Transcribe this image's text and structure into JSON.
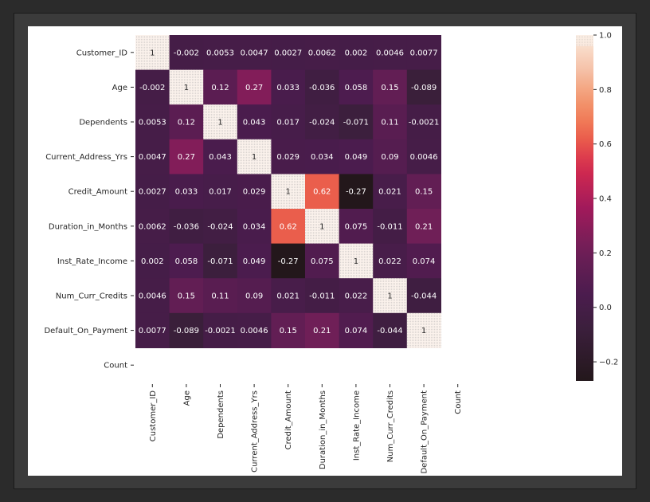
{
  "chart_data": {
    "type": "heatmap",
    "title": "",
    "row_labels": [
      "Customer_ID",
      "Age",
      "Dependents",
      "Current_Address_Yrs",
      "Credit_Amount",
      "Duration_in_Months",
      "Inst_Rate_Income",
      "Num_Curr_Credits",
      "Default_On_Payment",
      "Count"
    ],
    "col_labels": [
      "Customer_ID",
      "Age",
      "Dependents",
      "Current_Address_Yrs",
      "Credit_Amount",
      "Duration_in_Months",
      "Inst_Rate_Income",
      "Num_Curr_Credits",
      "Default_On_Payment",
      "Count"
    ],
    "values": [
      [
        1,
        -0.002,
        0.0053,
        0.0047,
        0.0027,
        0.0062,
        0.002,
        0.0046,
        0.0077,
        null
      ],
      [
        -0.002,
        1,
        0.12,
        0.27,
        0.033,
        -0.036,
        0.058,
        0.15,
        -0.089,
        null
      ],
      [
        0.0053,
        0.12,
        1,
        0.043,
        0.017,
        -0.024,
        -0.071,
        0.11,
        -0.0021,
        null
      ],
      [
        0.0047,
        0.27,
        0.043,
        1,
        0.029,
        0.034,
        0.049,
        0.09,
        0.0046,
        null
      ],
      [
        0.0027,
        0.033,
        0.017,
        0.029,
        1,
        0.62,
        -0.27,
        0.021,
        0.15,
        null
      ],
      [
        0.0062,
        -0.036,
        -0.024,
        0.034,
        0.62,
        1,
        0.075,
        -0.011,
        0.21,
        null
      ],
      [
        0.002,
        0.058,
        -0.071,
        0.049,
        -0.27,
        0.075,
        1,
        0.022,
        0.074,
        null
      ],
      [
        0.0046,
        0.15,
        0.11,
        0.09,
        0.021,
        -0.011,
        0.022,
        1,
        -0.044,
        null
      ],
      [
        0.0077,
        -0.089,
        -0.0021,
        0.0046,
        0.15,
        0.21,
        0.074,
        -0.044,
        1,
        null
      ],
      [
        null,
        null,
        null,
        null,
        null,
        null,
        null,
        null,
        null,
        null
      ]
    ],
    "annotations": [
      [
        "1",
        "-0.002",
        "0.0053",
        "0.0047",
        "0.0027",
        "0.0062",
        "0.002",
        "0.0046",
        "0.0077",
        ""
      ],
      [
        "-0.002",
        "1",
        "0.12",
        "0.27",
        "0.033",
        "-0.036",
        "0.058",
        "0.15",
        "-0.089",
        ""
      ],
      [
        "0.0053",
        "0.12",
        "1",
        "0.043",
        "0.017",
        "-0.024",
        "-0.071",
        "0.11",
        "-0.0021",
        ""
      ],
      [
        "0.0047",
        "0.27",
        "0.043",
        "1",
        "0.029",
        "0.034",
        "0.049",
        "0.09",
        "0.0046",
        ""
      ],
      [
        "0.0027",
        "0.033",
        "0.017",
        "0.029",
        "1",
        "0.62",
        "-0.27",
        "0.021",
        "0.15",
        ""
      ],
      [
        "0.0062",
        "-0.036",
        "-0.024",
        "0.034",
        "0.62",
        "1",
        "0.075",
        "-0.011",
        "0.21",
        ""
      ],
      [
        "0.002",
        "0.058",
        "-0.071",
        "0.049",
        "-0.27",
        "0.075",
        "1",
        "0.022",
        "0.074",
        ""
      ],
      [
        "0.0046",
        "0.15",
        "0.11",
        "0.09",
        "0.021",
        "-0.011",
        "0.022",
        "1",
        "-0.044",
        ""
      ],
      [
        "0.0077",
        "-0.089",
        "-0.0021",
        "0.0046",
        "0.15",
        "0.21",
        "0.074",
        "-0.044",
        "1",
        ""
      ],
      [
        "",
        "",
        "",
        "",
        "",
        "",
        "",
        "",
        "",
        ""
      ]
    ],
    "colorbar": {
      "colormap": "rocket",
      "vmin": -0.27,
      "vmax": 1.0,
      "ticks": [
        1.0,
        0.8,
        0.6,
        0.4,
        0.2,
        0.0,
        -0.2
      ],
      "tick_labels": [
        "1.0",
        "0.8",
        "0.6",
        "0.4",
        "0.2",
        "0.0",
        "−0.2"
      ]
    },
    "grid": false,
    "legend": "colorbar-right"
  },
  "colors": {
    "frame": "#3b3b3b",
    "background": "#ffffff",
    "text": "#262626"
  }
}
